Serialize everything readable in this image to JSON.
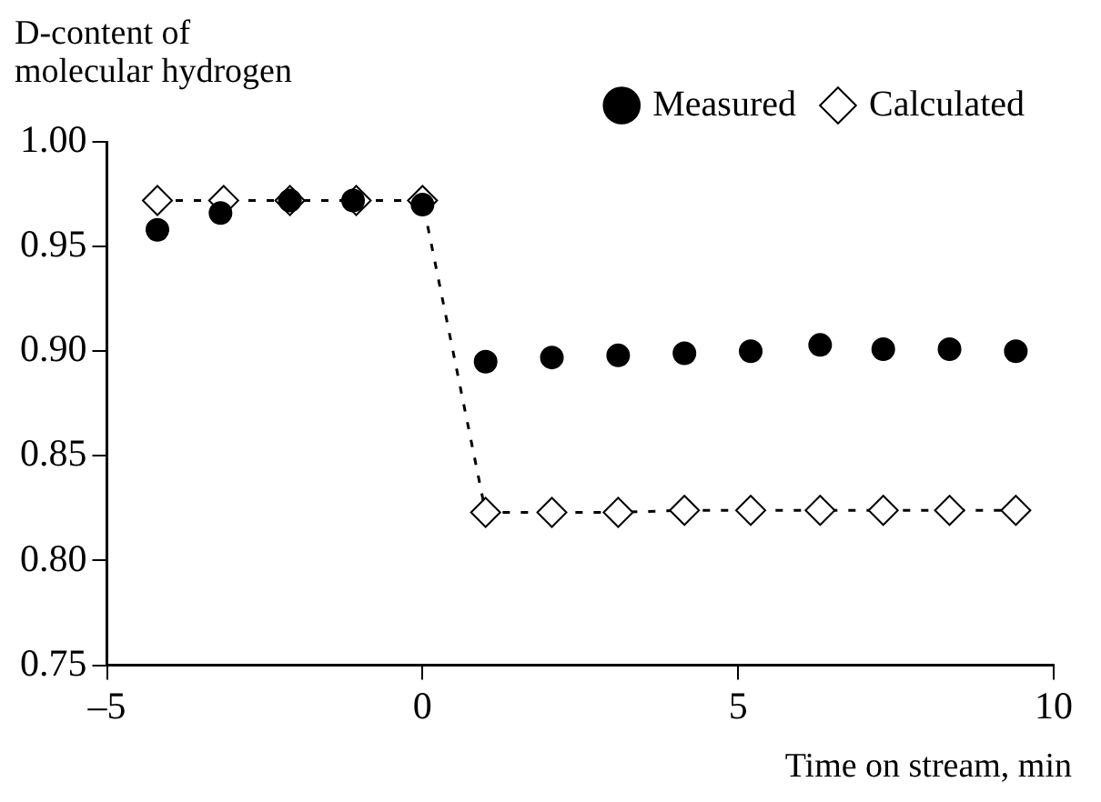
{
  "chart_data": {
    "type": "scatter",
    "xlabel": "Time on stream, min",
    "ylabel": "D-content of molecular hydrogen",
    "xlim": [
      -5,
      10
    ],
    "xticks": [
      {
        "value": -5,
        "label": "–5"
      },
      0,
      5,
      10
    ],
    "ylim": [
      0.75,
      1.0
    ],
    "yticks": [
      {
        "value": 0.75,
        "label": "0.75"
      },
      {
        "value": 0.8,
        "label": "0.80"
      },
      {
        "value": 0.85,
        "label": "0.85"
      },
      {
        "value": 0.9,
        "label": "0.90"
      },
      {
        "value": 0.95,
        "label": "0.95"
      },
      {
        "value": 1.0,
        "label": "1.00"
      }
    ],
    "grid": false,
    "legend": "top right",
    "series": [
      {
        "name": "Measured",
        "marker": "circle",
        "color": "#000000",
        "x": [
          -4.2,
          -3.2,
          -2.1,
          -1.1,
          0,
          1.0,
          2.05,
          3.1,
          4.15,
          5.2,
          6.3,
          7.3,
          8.35,
          9.4
        ],
        "values": [
          0.958,
          0.966,
          0.972,
          0.972,
          0.97,
          0.895,
          0.897,
          0.898,
          0.899,
          0.9,
          0.903,
          0.901,
          0.901,
          0.9
        ]
      },
      {
        "name": "Calculated",
        "type": "line",
        "marker": "diamond",
        "line_style": "dashed",
        "color": "#000000",
        "x": [
          -4.2,
          -3.15,
          -2.1,
          -1.05,
          0,
          1.0,
          2.05,
          3.1,
          4.15,
          5.2,
          6.3,
          7.3,
          8.35,
          9.4
        ],
        "values": [
          0.972,
          0.972,
          0.972,
          0.972,
          0.972,
          0.823,
          0.823,
          0.823,
          0.824,
          0.824,
          0.824,
          0.824,
          0.824,
          0.824
        ]
      }
    ]
  }
}
